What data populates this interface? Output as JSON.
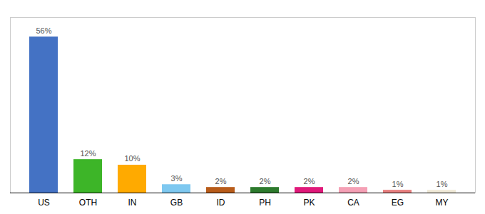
{
  "chart_data": {
    "type": "bar",
    "categories": [
      "US",
      "OTH",
      "IN",
      "GB",
      "ID",
      "PH",
      "PK",
      "CA",
      "EG",
      "MY"
    ],
    "values": [
      56,
      12,
      10,
      3,
      2,
      2,
      2,
      2,
      1,
      1
    ],
    "value_labels": [
      "56%",
      "12%",
      "10%",
      "3%",
      "2%",
      "2%",
      "2%",
      "2%",
      "1%",
      "1%"
    ],
    "colors": [
      "#4472c4",
      "#3db528",
      "#ffaa00",
      "#7ec8f0",
      "#b85c1a",
      "#2d7a2d",
      "#e0197a",
      "#f5a0b5",
      "#e88080",
      "#f0ead8"
    ],
    "ylim": [
      0,
      63
    ],
    "data_labels": true,
    "tick_labels": "x"
  }
}
